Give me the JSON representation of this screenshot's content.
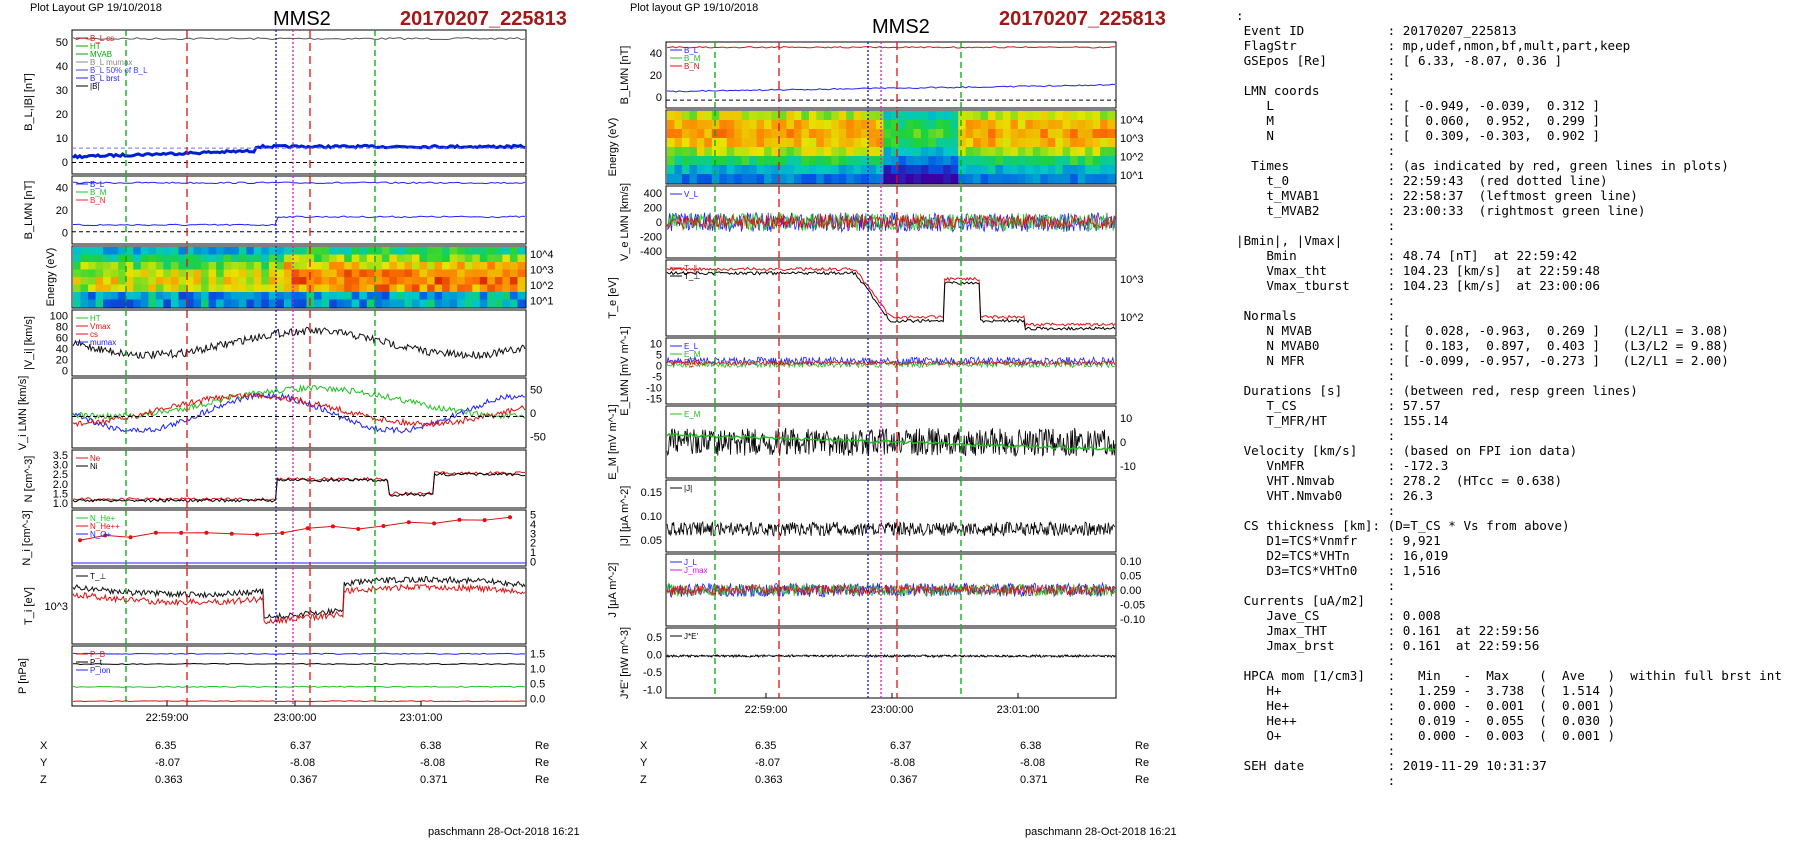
{
  "plot1": {
    "layout_label": "Plot Layout GP 19/10/2018",
    "spacecraft": "MMS2",
    "event_id": "20170207_225813",
    "time_ticks": [
      "22:59:00",
      "23:00:00",
      "23:01:00"
    ],
    "coords": {
      "rows": [
        {
          "name": "X",
          "values": [
            "6.35",
            "6.37",
            "6.38"
          ],
          "unit": "Re"
        },
        {
          "name": "Y",
          "values": [
            "-8.07",
            "-8.08",
            "-8.08"
          ],
          "unit": "Re"
        },
        {
          "name": "Z",
          "values": [
            "0.363",
            "0.367",
            "0.371"
          ],
          "unit": "Re"
        }
      ]
    },
    "footer": "paschmann 28-Oct-2018 16:21"
  },
  "plot2": {
    "layout_label": "Plot layout GP 19/10/2018",
    "spacecraft": "MMS2",
    "event_id": "20170207_225813",
    "time_ticks": [
      "22:59:00",
      "23:00:00",
      "23:01:00"
    ],
    "coords": {
      "rows": [
        {
          "name": "X",
          "values": [
            "6.35",
            "6.37",
            "6.38"
          ],
          "unit": "Re"
        },
        {
          "name": "Y",
          "values": [
            "-8.07",
            "-8.08",
            "-8.08"
          ],
          "unit": "Re"
        },
        {
          "name": "Z",
          "values": [
            "0.363",
            "0.367",
            "0.371"
          ],
          "unit": "Re"
        }
      ]
    },
    "footer": "paschmann 28-Oct-2018 16:21"
  },
  "info": {
    "lines": [
      ":",
      " Event ID           : 20170207_225813",
      " FlagStr            : mp,udef,nmon,bf,mult,part,keep",
      " GSEpos [Re]        : [ 6.33, -8.07, 0.36 ]",
      "                    :",
      " LMN coords         :",
      "    L               : [ -0.949, -0.039,  0.312 ]",
      "    M               : [  0.060,  0.952,  0.299 ]",
      "    N               : [  0.309, -0.303,  0.902 ]",
      "                    :",
      "  Times             : (as indicated by red, green lines in plots)",
      "    t_0             : 22:59:43  (red dotted line)",
      "    t_MVAB1         : 22:58:37  (leftmost green line)",
      "    t_MVAB2         : 23:00:33  (rightmost green line)",
      "                    :",
      "|Bmin|, |Vmax|      :",
      "    Bmin            : 48.74 [nT]  at 22:59:42",
      "    Vmax_tht        : 104.23 [km/s]  at 22:59:48",
      "    Vmax_tburst     : 104.23 [km/s]  at 23:00:06",
      "                    :",
      " Normals            :",
      "    N MVAB          : [  0.028, -0.963,  0.269 ]   (L2/L1 = 3.08)",
      "    N MVAB0         : [  0.183,  0.897,  0.403 ]   (L3/L2 = 9.88)",
      "    N MFR           : [ -0.099, -0.957, -0.273 ]   (L2/L1 = 2.00)",
      "                    :",
      " Durations [s]      : (between red, resp green lines)",
      "    T_CS            : 57.57",
      "    T_MFR/HT        : 155.14",
      "                    :",
      " Velocity [km/s]    : (based on FPI ion data)",
      "    VnMFR           : -172.3",
      "    VHT.Nmvab       : 278.2  (HTcc = 0.638)",
      "    VHT.Nmvab0      : 26.3",
      "                    :",
      " CS thickness [km]: (D=T_CS * Vs from above)",
      "    D1=TCS*Vnmfr    : 9,921",
      "    D2=TCS*VHTn     : 16,019",
      "    D3=TCS*VHTn0    : 1,516",
      "                    :",
      " Currents [uA/m2]   :",
      "    Jave_CS         : 0.008",
      "    Jmax_THT        : 0.161  at 22:59:56",
      "    Jmax_brst       : 0.161  at 22:59:56",
      "                    :",
      " HPCA mom [1/cm3]   :   Min   -  Max    (  Ave   )  within full brst int",
      "    H+              :   1.259 -  3.738  (  1.514 )",
      "    He+             :   0.000 -  0.001  (  0.001 )",
      "    He++            :   0.019 -  0.055  (  0.030 )",
      "    O+              :   0.000 -  0.003  (  0.001 )",
      "                    :",
      " SEH date           : 2019-11-29 10:31:37",
      "                    :"
    ]
  },
  "chart_data": [
    {
      "type": "line",
      "figure": "left",
      "x_time_ticks": [
        "22:59:00",
        "23:00:00",
        "23:01:00"
      ],
      "marker_lines": [
        {
          "color": "#00aa00",
          "style": "dashed",
          "meaning": "t_MVAB1"
        },
        {
          "color": "#e01010",
          "style": "dashed",
          "meaning": "CS boundary"
        },
        {
          "color": "#1010e0",
          "style": "dotted",
          "meaning": "current max"
        },
        {
          "color": "#e010e0",
          "style": "dotted",
          "meaning": "|Bmin|"
        },
        {
          "color": "#e01010",
          "style": "dashed",
          "meaning": "CS boundary"
        },
        {
          "color": "#00aa00",
          "style": "dashed",
          "meaning": "t_MVAB2"
        }
      ],
      "panels": [
        {
          "id": "B",
          "ylabel": "B_L,|B| [nT]",
          "yticks": [
            "0",
            "10",
            "20",
            "30",
            "40",
            "50"
          ],
          "ylim": [
            -5,
            55
          ],
          "legend": [
            "B_L cs",
            "HT",
            "MVAB",
            "B_L mumax",
            "B_L 50% of B_L",
            "B_L brst",
            "|B|"
          ],
          "series": [
            {
              "name": "|B|",
              "color": "#555555",
              "points": [
                [
                  0,
                  49
                ],
                [
                  0.5,
                  49.5
                ],
                [
                  1,
                  50
                ]
              ]
            },
            {
              "name": "B_L",
              "color": "#0020d0",
              "points": [
                [
                  0,
                  6
                ],
                [
                  0.2,
                  5
                ],
                [
                  0.4,
                  7
                ],
                [
                  0.45,
                  10
                ],
                [
                  0.55,
                  12
                ],
                [
                  0.7,
                  11
                ],
                [
                  0.85,
                  12
                ],
                [
                  1,
                  13
                ]
              ]
            },
            {
              "name": "B_L 50% of B_L",
              "color": "#7070ff",
              "points": [
                [
                  0,
                  9
                ],
                [
                  1,
                  9
                ]
              ]
            }
          ]
        },
        {
          "id": "BLMN",
          "ylabel": "B_LMN [nT]",
          "yticks": [
            "0",
            "20",
            "40"
          ],
          "ylim": [
            -8,
            48
          ],
          "legend": [
            "B_L",
            "B_M",
            "B_N"
          ],
          "series": [
            {
              "name": "B_L",
              "color": "#2020ff",
              "points": [
                [
                  0,
                  47
                ],
                [
                  1,
                  47
                ]
              ]
            },
            {
              "name": "B_M",
              "color": "#20c020",
              "points": [
                [
                  0,
                  2
                ],
                [
                  0.45,
                  5
                ],
                [
                  0.6,
                  8
                ],
                [
                  1,
                  9
                ]
              ]
            },
            {
              "name": "B_N",
              "color": "#ff2020",
              "points": [
                [
                  0,
                  -2
                ],
                [
                  1,
                  -2
                ]
              ]
            }
          ]
        },
        {
          "id": "Espec",
          "ylabel": "Energy (eV)",
          "yticks": [
            "10^1",
            "10^2",
            "10^3",
            "10^4"
          ],
          "type": "spectrogram"
        },
        {
          "id": "Vi",
          "ylabel": "|V_i| [km/s]",
          "yticks": [
            "0",
            "20",
            "40",
            "60",
            "80",
            "100"
          ],
          "ylim": [
            0,
            100
          ],
          "legend": [
            "HT",
            "Vmax",
            "cs",
            "mumax"
          ]
        },
        {
          "id": "ViLMN",
          "ylabel": "V_i LMN [km/s]",
          "yticks": [
            "-50",
            "0",
            "50"
          ],
          "ylim": [
            -80,
            80
          ]
        },
        {
          "id": "N",
          "ylabel": "N [cm^-3]",
          "yticks": [
            "1.0",
            "1.5",
            "2.0",
            "2.5",
            "3.0",
            "3.5"
          ],
          "ylim": [
            0.8,
            3.5
          ],
          "legend": [
            "Ne",
            "Ni"
          ]
        },
        {
          "id": "Ni_hpca",
          "ylabel": "N_i [cm^-3]",
          "yticks": [
            "0",
            "1",
            "2",
            "3",
            "4",
            "5"
          ],
          "ylim": [
            0,
            5.2
          ],
          "scale_label": "(x10^-2)",
          "legend": [
            "N_He+",
            "N_He++",
            "N_O+"
          ]
        },
        {
          "id": "Ti",
          "ylabel": "T_i [eV]",
          "yticks": [
            "10^3"
          ],
          "legend": [
            "T_⊥"
          ]
        },
        {
          "id": "P",
          "ylabel": "P [nPa]",
          "yticks": [
            "0.0",
            "0.5",
            "1.0",
            "1.5"
          ],
          "ylim": [
            0,
            1.55
          ],
          "legend": [
            "P_B",
            "P_t",
            "P_ion"
          ]
        }
      ]
    },
    {
      "type": "line",
      "figure": "right",
      "x_time_ticks": [
        "22:59:00",
        "23:00:00",
        "23:01:00"
      ],
      "panels": [
        {
          "id": "BLMN",
          "ylabel": "B_LMN [nT]",
          "yticks": [
            "0",
            "20",
            "40"
          ],
          "legend": [
            "B_L",
            "B_M",
            "B_N"
          ]
        },
        {
          "id": "Espec",
          "ylabel": "Energy (eV)",
          "yticks": [
            "10^1",
            "10^2",
            "10^3",
            "10^4"
          ],
          "type": "spectrogram"
        },
        {
          "id": "Ve",
          "ylabel": "V_e LMN [km/s]",
          "yticks": [
            "-400",
            "-200",
            "0",
            "200",
            "400"
          ],
          "ylim": [
            -450,
            450
          ],
          "legend": [
            "V_L"
          ]
        },
        {
          "id": "Te",
          "ylabel": "T_e [eV]",
          "yticks": [
            "10^2",
            "10^3"
          ],
          "legend": [
            "T_∥",
            "T_⊥"
          ]
        },
        {
          "id": "E",
          "ylabel": "E_LMN [mV m^-1]",
          "yticks": [
            "-15",
            "-10",
            "-5",
            "0",
            "5",
            "10"
          ],
          "ylim": [
            -16,
            12
          ],
          "legend": [
            "E_L",
            "E_M",
            "E_N"
          ]
        },
        {
          "id": "EM",
          "ylabel": "E_M [mV m^-1]",
          "yticks": [
            "-10",
            "0",
            "10"
          ],
          "ylim": [
            -15,
            15
          ],
          "legend": [
            "E_M"
          ]
        },
        {
          "id": "J",
          "ylabel": "|J| [μA m^-2]",
          "yticks": [
            "0.05",
            "0.10",
            "0.15"
          ],
          "ylim": [
            0,
            0.16
          ],
          "legend": [
            "|J|"
          ]
        },
        {
          "id": "JLMN",
          "ylabel": "J [μA m^-2]",
          "yticks": [
            "-0.10",
            "-0.05",
            "0.00",
            "0.05",
            "0.10"
          ],
          "ylim": [
            -0.12,
            0.12
          ],
          "legend": [
            "J_L",
            "J_max"
          ]
        },
        {
          "id": "JE",
          "ylabel": "J*E' [nW m^-3]",
          "yticks": [
            "-1.0",
            "-0.5",
            "0.0",
            "0.5"
          ],
          "ylim": [
            -1.05,
            0.7
          ],
          "legend": [
            "J*E'"
          ]
        }
      ]
    }
  ]
}
